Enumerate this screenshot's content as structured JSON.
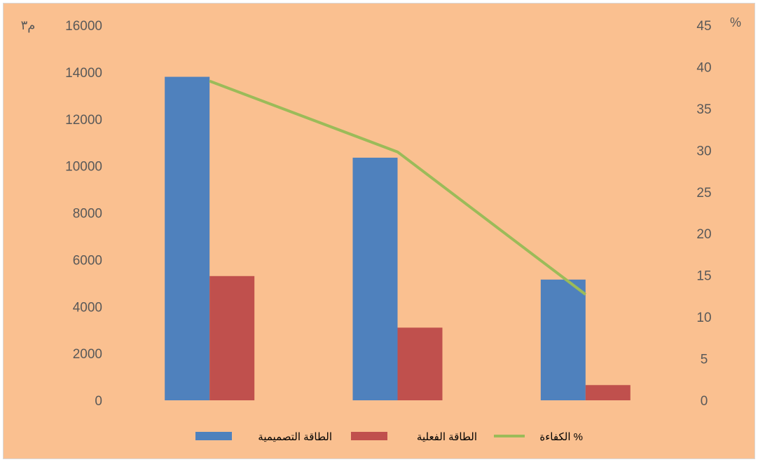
{
  "chart_data": {
    "type": "bar",
    "categories": [
      "",
      "",
      ""
    ],
    "series": [
      {
        "name": "الطاقة التصميمية",
        "values": [
          13800,
          10350,
          5150
        ],
        "axis": "left",
        "kind": "bar",
        "color": "#4f81bd"
      },
      {
        "name": "الطاقة الفعلية",
        "values": [
          5300,
          3100,
          650
        ],
        "axis": "left",
        "kind": "bar",
        "color": "#c0504d"
      },
      {
        "name": "الكفاءة %",
        "values": [
          38.3,
          29.8,
          12.7
        ],
        "axis": "right",
        "kind": "line",
        "color": "#9bbb59"
      }
    ],
    "y_left": {
      "label": "م٣",
      "ylim": [
        0,
        16000
      ],
      "ticks": [
        "0",
        "2000",
        "4000",
        "6000",
        "8000",
        "10000",
        "12000",
        "14000",
        "16000"
      ]
    },
    "y_right": {
      "label": "%",
      "ylim": [
        0,
        45
      ],
      "ticks": [
        "0",
        "5",
        "10",
        "15",
        "20",
        "25",
        "30",
        "35",
        "40",
        "45"
      ]
    },
    "grid": false,
    "legend_position": "bottom",
    "background_color": "#fac090",
    "text_color": "#595959"
  }
}
